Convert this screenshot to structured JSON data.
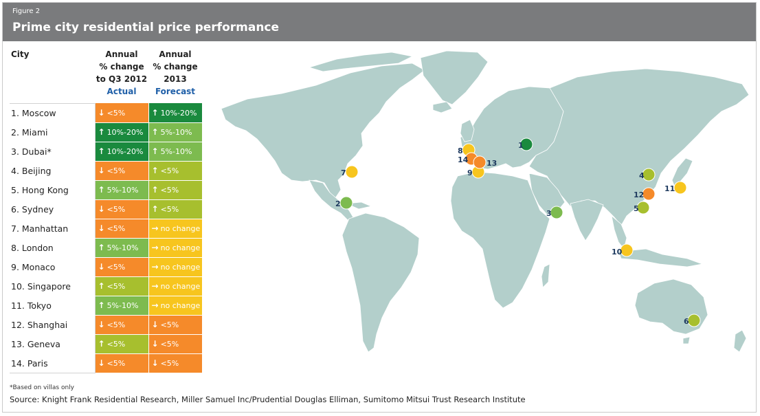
{
  "figure_label": "Figure 2",
  "title": "Prime city residential price performance",
  "table": {
    "headers": {
      "city": "City",
      "actual_lines": [
        "Annual",
        "% change",
        "to Q3 2012"
      ],
      "actual_sub": "Actual",
      "forecast_lines": [
        "Annual",
        "% change",
        "2013"
      ],
      "forecast_sub": "Forecast"
    }
  },
  "colors": {
    "dark_green": "#1a8a3e",
    "green": "#7dbb4f",
    "yellow_green": "#a7bf2e",
    "yellow": "#f7c51e",
    "orange": "#f58a2a",
    "map_land": "#b3cfcb"
  },
  "chart_data": {
    "type": "table",
    "rows": [
      {
        "n": "1",
        "city": "1. Moscow",
        "actual": "<5%",
        "actual_dir": "down",
        "actual_color": "orange",
        "forecast": "10%-20%",
        "forecast_dir": "up",
        "forecast_color": "dark_green",
        "marker_color": "dark_green"
      },
      {
        "n": "2",
        "city": "2. Miami",
        "actual": "10%-20%",
        "actual_dir": "up",
        "actual_color": "dark_green",
        "forecast": "5%-10%",
        "forecast_dir": "up",
        "forecast_color": "green",
        "marker_color": "green"
      },
      {
        "n": "3",
        "city": "3. Dubai*",
        "actual": "10%-20%",
        "actual_dir": "up",
        "actual_color": "dark_green",
        "forecast": "5%-10%",
        "forecast_dir": "up",
        "forecast_color": "green",
        "marker_color": "green"
      },
      {
        "n": "4",
        "city": "4. Beijing",
        "actual": "<5%",
        "actual_dir": "down",
        "actual_color": "orange",
        "forecast": "<5%",
        "forecast_dir": "up",
        "forecast_color": "yellow_green",
        "marker_color": "yellow_green"
      },
      {
        "n": "5",
        "city": "5. Hong Kong",
        "actual": "5%-10%",
        "actual_dir": "up",
        "actual_color": "green",
        "forecast": "<5%",
        "forecast_dir": "up",
        "forecast_color": "yellow_green",
        "marker_color": "yellow_green"
      },
      {
        "n": "6",
        "city": "6. Sydney",
        "actual": "<5%",
        "actual_dir": "down",
        "actual_color": "orange",
        "forecast": "<5%",
        "forecast_dir": "up",
        "forecast_color": "yellow_green",
        "marker_color": "yellow_green"
      },
      {
        "n": "7",
        "city": "7. Manhattan",
        "actual": "<5%",
        "actual_dir": "down",
        "actual_color": "orange",
        "forecast": "no change",
        "forecast_dir": "flat",
        "forecast_color": "yellow",
        "marker_color": "yellow"
      },
      {
        "n": "8",
        "city": "8. London",
        "actual": "5%-10%",
        "actual_dir": "up",
        "actual_color": "green",
        "forecast": "no change",
        "forecast_dir": "flat",
        "forecast_color": "yellow",
        "marker_color": "yellow"
      },
      {
        "n": "9",
        "city": "9. Monaco",
        "actual": "<5%",
        "actual_dir": "down",
        "actual_color": "orange",
        "forecast": "no change",
        "forecast_dir": "flat",
        "forecast_color": "yellow",
        "marker_color": "yellow"
      },
      {
        "n": "10",
        "city": "10. Singapore",
        "actual": "<5%",
        "actual_dir": "up",
        "actual_color": "yellow_green",
        "forecast": "no change",
        "forecast_dir": "flat",
        "forecast_color": "yellow",
        "marker_color": "yellow"
      },
      {
        "n": "11",
        "city": "11. Tokyo",
        "actual": "5%-10%",
        "actual_dir": "up",
        "actual_color": "green",
        "forecast": "no change",
        "forecast_dir": "flat",
        "forecast_color": "yellow",
        "marker_color": "yellow"
      },
      {
        "n": "12",
        "city": "12. Shanghai",
        "actual": "<5%",
        "actual_dir": "down",
        "actual_color": "orange",
        "forecast": "<5%",
        "forecast_dir": "down",
        "forecast_color": "orange",
        "marker_color": "orange"
      },
      {
        "n": "13",
        "city": "13. Geneva",
        "actual": "<5%",
        "actual_dir": "up",
        "actual_color": "yellow_green",
        "forecast": "<5%",
        "forecast_dir": "down",
        "forecast_color": "orange",
        "marker_color": "orange"
      },
      {
        "n": "14",
        "city": "14. Paris",
        "actual": "<5%",
        "actual_dir": "down",
        "actual_color": "orange",
        "forecast": "<5%",
        "forecast_dir": "down",
        "forecast_color": "orange",
        "marker_color": "orange"
      }
    ]
  },
  "footnote": "*Based on villas only",
  "source": "Source: Knight Frank Residential Research, Miller Samuel Inc/Prudential Douglas Elliman, Sumitomo Mitsui Trust Research Institute"
}
